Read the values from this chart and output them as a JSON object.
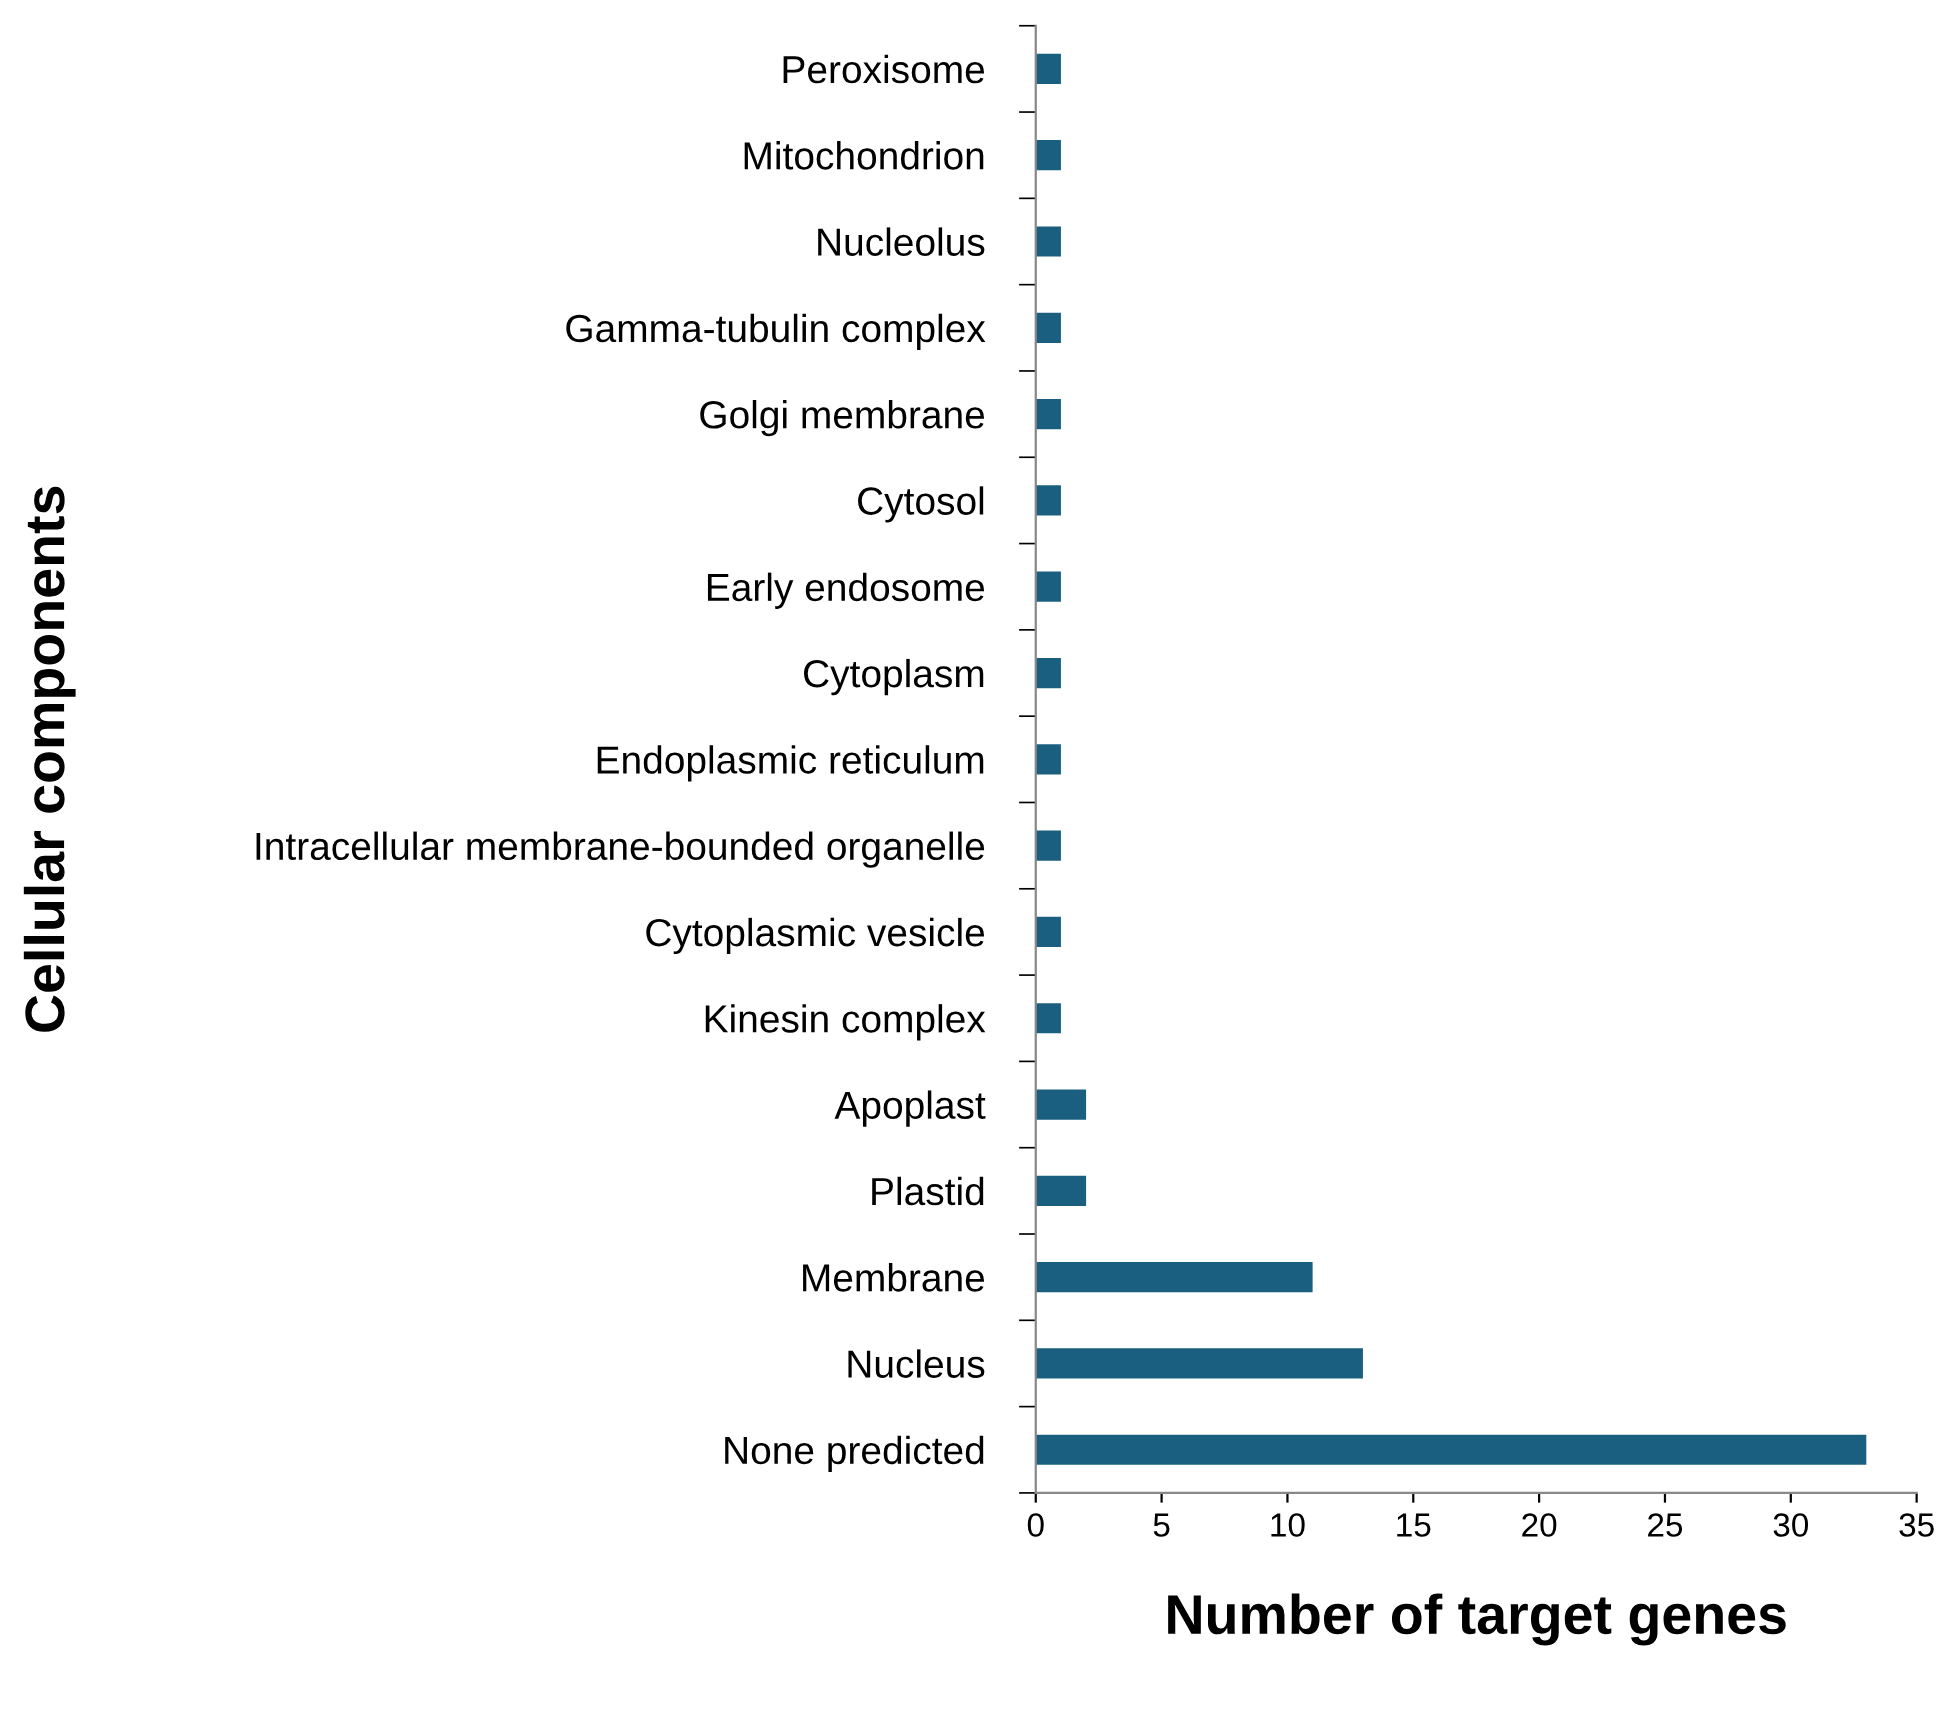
{
  "chart_data": {
    "type": "bar",
    "orientation": "horizontal",
    "xlabel": "Number of target genes",
    "ylabel": "Cellular components",
    "categories": [
      "Peroxisome",
      "Mitochondrion",
      "Nucleolus",
      "Gamma-tubulin complex",
      "Golgi membrane",
      "Cytosol",
      "Early endosome",
      "Cytoplasm",
      "Endoplasmic reticulum",
      "Intracellular membrane-bounded organelle",
      "Cytoplasmic vesicle",
      "Kinesin complex",
      "Apoplast",
      "Plastid",
      "Membrane",
      "Nucleus",
      "None predicted"
    ],
    "values": [
      1,
      1,
      1,
      1,
      1,
      1,
      1,
      1,
      1,
      1,
      1,
      1,
      2,
      2,
      11,
      13,
      33
    ],
    "color": "#1b5f80",
    "xlim": [
      0,
      35
    ],
    "xticks": [
      0,
      5,
      10,
      15,
      20,
      25,
      30,
      35
    ],
    "grid": false
  }
}
